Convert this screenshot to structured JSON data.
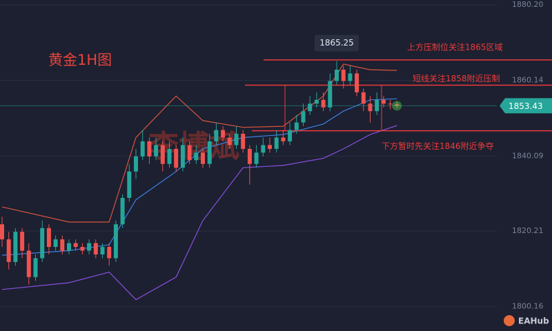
{
  "chart_data": {
    "type": "candlestick",
    "title": "黄金1H图",
    "watermark": "李博斌",
    "brand": "EAHub",
    "ohlc": {
      "open": [
        1822,
        1818,
        1812,
        1820,
        1815,
        1808,
        1813,
        1821,
        1816,
        1818,
        1815,
        1817,
        1816,
        1815,
        1817,
        1814,
        1816,
        1813,
        1822,
        1829,
        1836,
        1840,
        1844,
        1840,
        1843,
        1838,
        1842,
        1837,
        1843,
        1839,
        1841,
        1838,
        1844,
        1847,
        1845,
        1843,
        1846,
        1842,
        1838,
        1841,
        1843,
        1842,
        1845,
        1844,
        1847,
        1849,
        1852,
        1854,
        1855,
        1853,
        1860,
        1863,
        1860,
        1862,
        1857,
        1854,
        1852,
        1855,
        1854,
        1853.8
      ],
      "high": [
        1824,
        1820,
        1821,
        1821,
        1817,
        1814,
        1823,
        1822,
        1819,
        1819,
        1818,
        1818,
        1817,
        1818,
        1818,
        1817,
        1817,
        1823,
        1830,
        1838,
        1842,
        1847,
        1845,
        1845,
        1844,
        1844,
        1843,
        1845,
        1844,
        1843,
        1842,
        1846,
        1849,
        1848,
        1846,
        1848,
        1847,
        1843,
        1843,
        1845,
        1845,
        1847,
        1847,
        1849,
        1851,
        1854,
        1856,
        1857,
        1857,
        1862,
        1865.3,
        1864,
        1864,
        1863,
        1858,
        1856,
        1857,
        1856,
        1855,
        1854.5
      ],
      "low": [
        1816,
        1810,
        1811,
        1813,
        1806,
        1807,
        1812,
        1814,
        1815,
        1814,
        1814,
        1815,
        1814,
        1814,
        1813,
        1813,
        1811,
        1812,
        1821,
        1828,
        1834,
        1839,
        1838,
        1839,
        1836,
        1837,
        1836,
        1836,
        1838,
        1838,
        1837,
        1837,
        1843,
        1844,
        1842,
        1842,
        1841,
        1832.5,
        1837,
        1840,
        1841,
        1841,
        1843,
        1843,
        1846,
        1848,
        1851,
        1853,
        1852,
        1852,
        1859,
        1858,
        1859,
        1856,
        1852,
        1849,
        1851,
        1853,
        1852.5,
        1852.8
      ],
      "close": [
        1818,
        1812,
        1820,
        1815,
        1808,
        1813,
        1821,
        1816,
        1818,
        1815,
        1817,
        1816,
        1815,
        1817,
        1814,
        1816,
        1813,
        1822,
        1829,
        1836,
        1840,
        1844,
        1840,
        1843,
        1838,
        1842,
        1837,
        1843,
        1839,
        1841,
        1838,
        1844,
        1847,
        1845,
        1843,
        1846,
        1842,
        1838,
        1841,
        1843,
        1842,
        1845,
        1844,
        1847,
        1849,
        1852,
        1854,
        1855,
        1853,
        1860,
        1863,
        1860,
        1862,
        1857,
        1854,
        1852,
        1855,
        1854,
        1853.8,
        1853.43
      ]
    },
    "up_color": "#26a69a",
    "down_color": "#ef5350",
    "bands": [
      {
        "color": "#d9543f",
        "x": [
          0,
          10,
          16,
          20,
          26,
          30,
          36,
          42,
          48,
          51,
          55,
          59
        ],
        "values": [
          1826.6,
          1822.6,
          1822.6,
          1845,
          1856,
          1849.5,
          1847.7,
          1848,
          1856,
          1864.5,
          1863,
          1862.8
        ]
      },
      {
        "color": "#3f7fe0",
        "x": [
          0,
          10,
          16,
          20,
          26,
          30,
          36,
          42,
          48,
          51,
          55,
          59
        ],
        "values": [
          1813.8,
          1815,
          1816.6,
          1828.5,
          1836,
          1842,
          1845,
          1845.8,
          1848.6,
          1852,
          1855,
          1855.3
        ]
      },
      {
        "color": "#8a4fe0",
        "x": [
          0,
          10,
          16,
          20,
          26,
          30,
          36,
          42,
          48,
          51,
          55,
          59
        ],
        "values": [
          1804.7,
          1806.5,
          1809.3,
          1802,
          1808,
          1823,
          1837,
          1837.6,
          1839.5,
          1842,
          1845.8,
          1848.2
        ]
      }
    ],
    "ylim": [
      1793.7,
      1881.48
    ],
    "yticks": [
      {
        "value": 1880.2,
        "label": "1880.20"
      },
      1860.14,
      1840.09,
      1820.21,
      1800.16
    ],
    "grid": true,
    "last_price": 1853.43,
    "peak_label": 1865.25,
    "levels": [
      {
        "value": 1865.6,
        "text": "上方压制位关注1865区域"
      },
      {
        "value": 1858.9,
        "text": "短线关注1858附近压制"
      },
      {
        "value": 1846.8,
        "text": "下方暂时先关注1846附近争夺"
      }
    ]
  }
}
